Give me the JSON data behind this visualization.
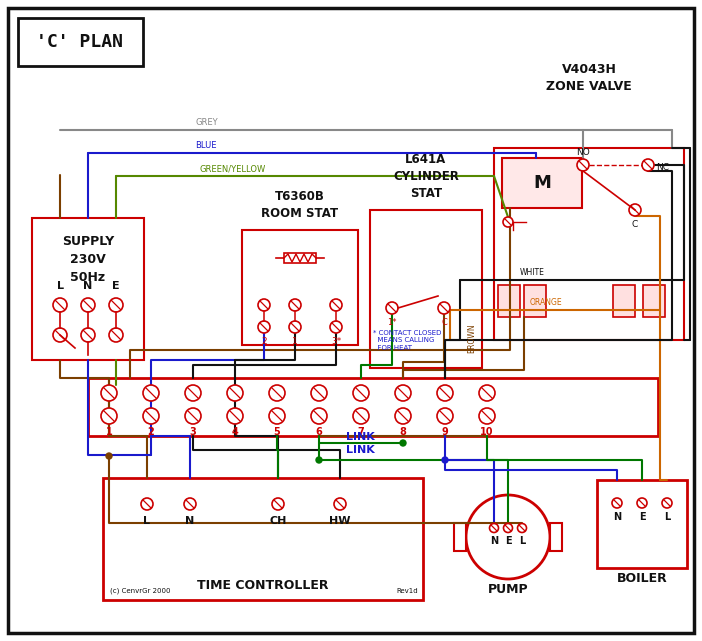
{
  "red": "#cc0000",
  "blue": "#1a1acc",
  "green": "#007700",
  "black": "#111111",
  "brown": "#7B3F00",
  "orange": "#cc6600",
  "grey": "#888888",
  "gy": "#558800",
  "white": "#ffffff",
  "title": "'C' PLAN",
  "supply": "SUPPLY\n230V\n50Hz",
  "zone_valve": "V4043H\nZONE VALVE",
  "room_stat": "T6360B\nROOM STAT",
  "cyl_stat": "L641A\nCYLINDER\nSTAT",
  "tc": "TIME CONTROLLER",
  "pump": "PUMP",
  "boiler": "BOILER",
  "copyright": "(c) CenvrGr 2000",
  "rev": "Rev1d",
  "contact_note": "* CONTACT CLOSED\n  MEANS CALLING\n  FOR HEAT",
  "lw": 1.5
}
